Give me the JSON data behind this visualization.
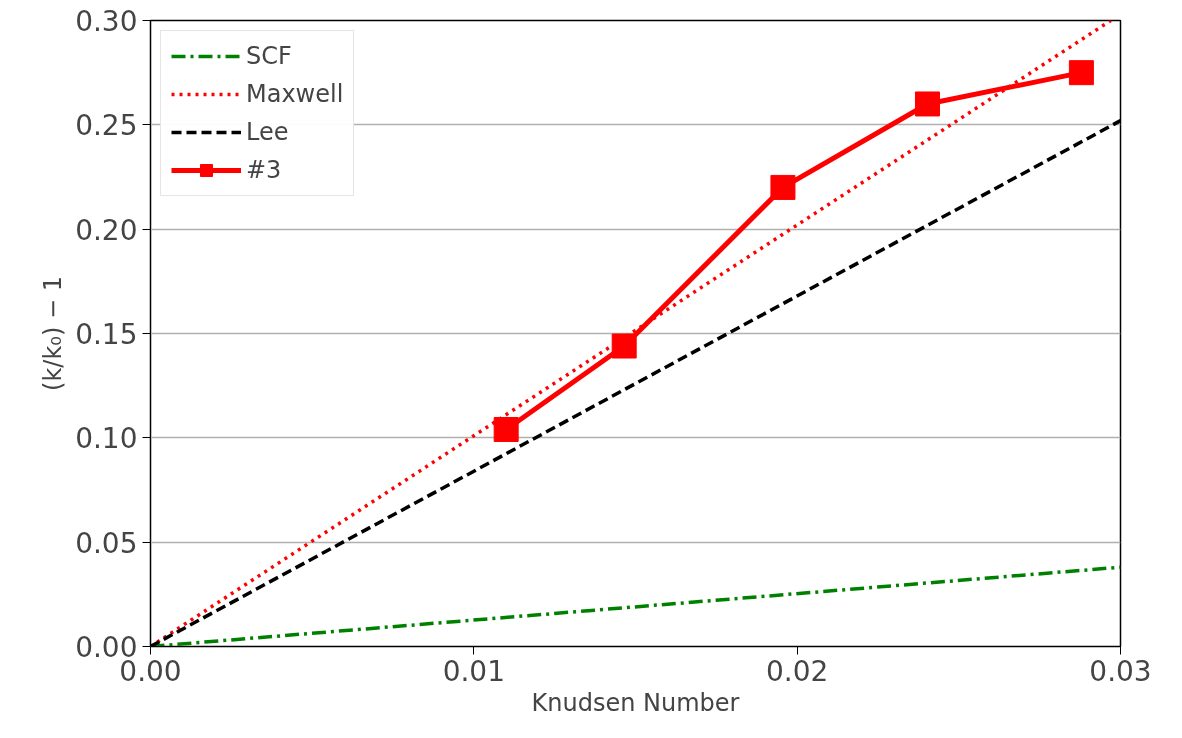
{
  "chart_data": {
    "type": "line",
    "xlabel": "Knudsen Number",
    "ylabel": "(k/k₀) − 1",
    "xlim": [
      0,
      0.03
    ],
    "ylim": [
      0,
      0.3
    ],
    "xticks": [
      {
        "value": 0,
        "label": "0.00"
      },
      {
        "value": 0.01,
        "label": "0.01"
      },
      {
        "value": 0.02,
        "label": "0.02"
      },
      {
        "value": 0.03,
        "label": "0.03"
      }
    ],
    "yticks": [
      {
        "value": 0,
        "label": "0.00"
      },
      {
        "value": 0.05,
        "label": "0.05"
      },
      {
        "value": 0.1,
        "label": "0.10"
      },
      {
        "value": 0.15,
        "label": "0.15"
      },
      {
        "value": 0.2,
        "label": "0.20"
      },
      {
        "value": 0.25,
        "label": "0.25"
      },
      {
        "value": 0.3,
        "label": "0.30"
      }
    ],
    "grid": "y",
    "legend": "top left",
    "series": [
      {
        "name": "SCF",
        "color": "#008000",
        "x": [
          0,
          0.03
        ],
        "values": [
          0,
          0.038
        ],
        "line_style": "dashdot",
        "marker": "none"
      },
      {
        "name": "Maxwell",
        "color": "#ff0000",
        "x": [
          0,
          0.0297
        ],
        "values": [
          0,
          0.3
        ],
        "line_style": "dotted",
        "marker": "none"
      },
      {
        "name": "Lee",
        "color": "#000000",
        "x": [
          0,
          0.03
        ],
        "values": [
          0,
          0.252
        ],
        "line_style": "dashed",
        "marker": "none"
      },
      {
        "name": "#3",
        "color": "#ff0000",
        "x": [
          0.011,
          0.01465,
          0.01956,
          0.02403,
          0.02879
        ],
        "values": [
          0.104,
          0.144,
          0.22,
          0.26,
          0.275
        ],
        "line_style": "solid",
        "marker": "square"
      }
    ]
  }
}
